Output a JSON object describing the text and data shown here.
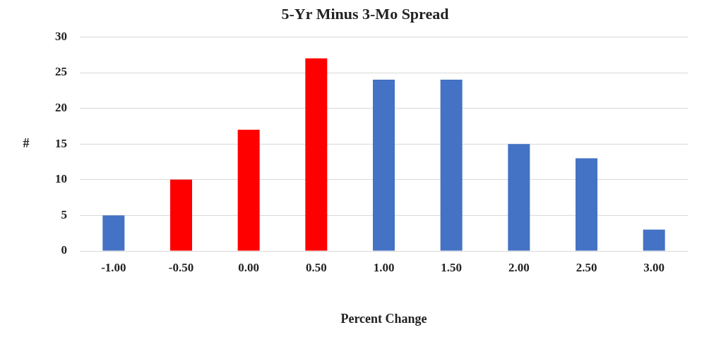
{
  "chart_data": {
    "type": "bar",
    "title": "5-Yr Minus 3-Mo Spread",
    "xlabel": "Percent Change",
    "ylabel": "#",
    "categories": [
      "-1.00",
      "-0.50",
      "0.00",
      "0.50",
      "1.00",
      "1.50",
      "2.00",
      "2.50",
      "3.00"
    ],
    "values": [
      5,
      10,
      17,
      27,
      24,
      24,
      15,
      13,
      3
    ],
    "colors": [
      "#4472c4",
      "#ff0000",
      "#ff0000",
      "#ff0000",
      "#4472c4",
      "#4472c4",
      "#4472c4",
      "#4472c4",
      "#4472c4"
    ],
    "ylim": [
      0,
      30
    ],
    "yticks": [
      0,
      5,
      10,
      15,
      20,
      25,
      30
    ],
    "grid": "y",
    "legend": false
  }
}
